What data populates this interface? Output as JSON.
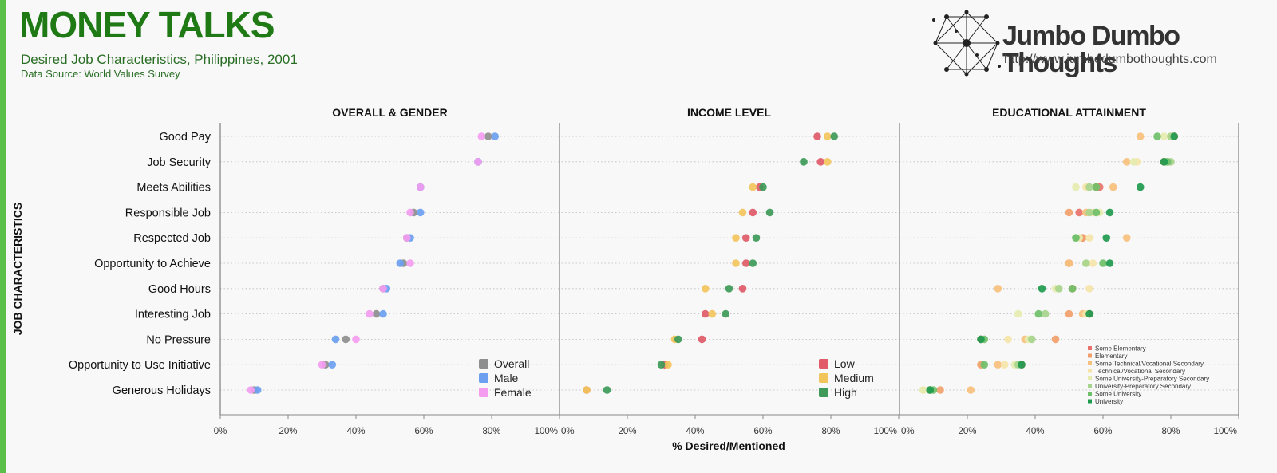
{
  "header": {
    "title": "MONEY TALKS",
    "subtitle": "Desired Job Characteristics, Philippines, 2001",
    "source": "Data Source: World Values Survey",
    "brand_name": "Jumbo Dumbo Thoughts",
    "brand_url": "http://www.jumbodumbothoughts.com"
  },
  "chart_data": {
    "type": "scatter",
    "ylabel": "JOB CHARACTERISTICS",
    "xlabel": "% Desired/Mentioned",
    "xlim": [
      0,
      100
    ],
    "x_ticks": [
      "0%",
      "20%",
      "40%",
      "60%",
      "80%",
      "100%"
    ],
    "categories": [
      "Good Pay",
      "Job Security",
      "Meets Abilities",
      "Responsible Job",
      "Respected Job",
      "Opportunity to Achieve",
      "Good Hours",
      "Interesting Job",
      "No Pressure",
      "Opportunity to Use Initiative",
      "Generous Holidays"
    ],
    "panels": [
      {
        "title": "OVERALL & GENDER",
        "legend": "large",
        "series": [
          {
            "name": "Overall",
            "color": "#8e8e8e",
            "values": [
              79,
              76,
              59,
              57,
              55,
              54,
              48,
              46,
              37,
              31,
              10
            ]
          },
          {
            "name": "Male",
            "color": "#6d9ff0",
            "values": [
              81,
              76,
              59,
              59,
              56,
              53,
              49,
              48,
              34,
              33,
              11
            ]
          },
          {
            "name": "Female",
            "color": "#f39cf0",
            "values": [
              77,
              76,
              59,
              56,
              55,
              56,
              48,
              44,
              40,
              30,
              9
            ]
          }
        ]
      },
      {
        "title": "INCOME LEVEL",
        "legend": "large",
        "series": [
          {
            "name": "Low",
            "color": "#e05a68",
            "values": [
              76,
              77,
              59,
              57,
              55,
              55,
              54,
              43,
              42,
              31,
              8
            ]
          },
          {
            "name": "Medium",
            "color": "#f2c45c",
            "values": [
              79,
              79,
              57,
              54,
              52,
              52,
              43,
              45,
              34,
              32,
              8
            ]
          },
          {
            "name": "High",
            "color": "#3d9a58",
            "values": [
              81,
              72,
              60,
              62,
              58,
              57,
              50,
              49,
              35,
              30,
              14
            ]
          }
        ]
      },
      {
        "title": "EDUCATIONAL ATTAINMENT",
        "legend": "small",
        "series": [
          {
            "name": "Some Elementary",
            "color": "#e8726c",
            "values": [
              81,
              78,
              59,
              53,
              54,
              50,
              51,
              56,
              24,
              36,
              9
            ]
          },
          {
            "name": "Elementary",
            "color": "#f2a06a",
            "values": [
              81,
              78,
              58,
              50,
              54,
              50,
              51,
              50,
              46,
              24,
              12
            ]
          },
          {
            "name": "Some Technical/Vocational Secondary",
            "color": "#f7c07c",
            "values": [
              71,
              67,
              63,
              55,
              67,
              50,
              29,
              54,
              37,
              29,
              21
            ]
          },
          {
            "name": "Technical/Vocational Secondary",
            "color": "#f5e4a8",
            "values": [
              80,
              70,
              55,
              57,
              56,
              57,
              56,
              55,
              32,
              31,
              7
            ]
          },
          {
            "name": "Some University-Preparatory Secondary",
            "color": "#e6ecb0",
            "values": [
              78,
              69,
              52,
              59,
              53,
              55,
              46,
              35,
              38,
              34,
              7
            ]
          },
          {
            "name": "University-Preparatory Secondary",
            "color": "#a7d48c",
            "values": [
              80,
              80,
              56,
              56,
              52,
              55,
              47,
              43,
              39,
              35,
              9
            ]
          },
          {
            "name": "Some University",
            "color": "#6fbf6a",
            "values": [
              76,
              79,
              58,
              58,
              52,
              60,
              51,
              41,
              25,
              25,
              10
            ]
          },
          {
            "name": "University",
            "color": "#1e9a4e",
            "values": [
              81,
              78,
              71,
              62,
              61,
              62,
              42,
              56,
              24,
              36,
              9
            ]
          }
        ]
      }
    ]
  }
}
